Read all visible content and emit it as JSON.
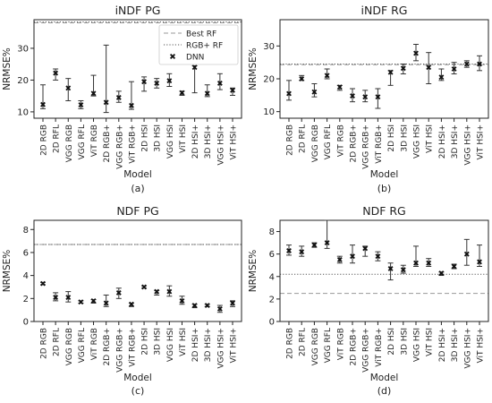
{
  "chart_data": [
    {
      "type": "scatter",
      "panel_label": "(a)",
      "title": "iNDF PG",
      "xlabel": "Model",
      "ylabel": "NRMSE%",
      "ylim": [
        8,
        39
      ],
      "yticks": [
        10,
        20,
        30
      ],
      "categories": [
        "2D RGB",
        "2D RFL",
        "VGG RGB",
        "VGG RFL",
        "ViT RGB",
        "2D RGB+",
        "VGG RGB+",
        "ViT RGB+",
        "2D HSI",
        "3D HSI",
        "VGG HSI",
        "ViT HSI",
        "2D HSI+",
        "3D HSI+",
        "VGG HSI+",
        "ViT HSI+"
      ],
      "series": [
        {
          "name": "DNN",
          "values": [
            12.3,
            22.2,
            17.5,
            12.2,
            15.8,
            13.0,
            14.5,
            12.0,
            19.5,
            19.0,
            19.8,
            16.0,
            24.0,
            15.8,
            19.0,
            16.8
          ],
          "err_low": [
            11.0,
            20.0,
            13.5,
            11.0,
            15.0,
            9.8,
            13.0,
            10.8,
            16.5,
            17.5,
            18.0,
            15.2,
            16.0,
            14.8,
            17.0,
            15.2
          ],
          "err_high": [
            18.5,
            23.5,
            20.5,
            13.5,
            21.5,
            31.0,
            16.5,
            19.5,
            21.0,
            20.5,
            22.0,
            16.5,
            24.5,
            18.5,
            22.0,
            17.5
          ]
        }
      ],
      "ref_lines": [
        {
          "name": "Best RF",
          "style": "dashed",
          "value": 38.0
        },
        {
          "name": "RGB+ RF",
          "style": "dotted",
          "value": 38.3
        }
      ],
      "legend": {
        "position": "top-right",
        "entries": [
          "Best RF",
          "RGB+ RF",
          "DNN"
        ]
      },
      "grid": false
    },
    {
      "type": "scatter",
      "panel_label": "(b)",
      "title": "iNDF RG",
      "xlabel": "Model",
      "ylabel": "NRMSE%",
      "ylim": [
        8,
        38
      ],
      "yticks": [
        10,
        20,
        30
      ],
      "categories": [
        "2D RGB",
        "2D RFL",
        "VGG RGB",
        "VGG RFL",
        "ViT RGB",
        "2D RGB+",
        "VGG RGB+",
        "ViT RGB+",
        "2D HSI",
        "3D HSI",
        "VGG HSI",
        "ViT HSI",
        "2D HSI+",
        "3D HSI+",
        "VGG HSI+",
        "ViT HSI+"
      ],
      "series": [
        {
          "name": "DNN",
          "values": [
            15.5,
            20.0,
            16.0,
            21.0,
            17.5,
            14.8,
            14.5,
            14.5,
            22.0,
            23.2,
            27.8,
            23.5,
            20.5,
            23.0,
            24.5,
            24.5
          ],
          "err_low": [
            13.5,
            19.5,
            14.5,
            20.0,
            16.5,
            13.0,
            13.0,
            11.0,
            18.0,
            21.5,
            25.5,
            18.5,
            19.5,
            21.5,
            23.5,
            22.5
          ],
          "err_high": [
            19.5,
            21.0,
            18.5,
            23.0,
            18.0,
            17.0,
            16.5,
            17.0,
            22.5,
            24.5,
            30.5,
            28.0,
            23.0,
            25.0,
            25.5,
            27.0
          ]
        }
      ],
      "ref_lines": [
        {
          "name": "Best RF",
          "style": "dashed",
          "value": 24.3
        },
        {
          "name": "RGB+ RF",
          "style": "dotted",
          "value": 24.5
        }
      ],
      "grid": false
    },
    {
      "type": "scatter",
      "panel_label": "(c)",
      "title": "NDF PG",
      "xlabel": "Model",
      "ylabel": "NRMSE%",
      "ylim": [
        0,
        8.8
      ],
      "yticks": [
        0,
        2,
        4,
        6,
        8
      ],
      "categories": [
        "2D RGB",
        "2D RFL",
        "VGG RGB",
        "VGG RFL",
        "ViT RGB",
        "2D RGB+",
        "VGG RGB+",
        "ViT RGB+",
        "2D HSI",
        "3D HSI",
        "VGG HSI",
        "ViT HSI",
        "2D HSI+",
        "3D HSI+",
        "VGG HSI+",
        "ViT HSI+"
      ],
      "series": [
        {
          "name": "DNN",
          "values": [
            3.3,
            2.1,
            2.1,
            1.7,
            1.8,
            1.6,
            2.5,
            1.5,
            3.0,
            2.6,
            2.6,
            1.8,
            1.4,
            1.4,
            1.1,
            1.6
          ],
          "err_low": [
            3.2,
            1.8,
            1.7,
            1.6,
            1.6,
            1.3,
            2.0,
            1.3,
            2.9,
            2.3,
            2.2,
            1.5,
            1.2,
            1.3,
            0.8,
            1.3
          ],
          "err_high": [
            3.4,
            2.5,
            2.6,
            1.8,
            1.9,
            2.3,
            2.9,
            1.6,
            3.1,
            2.7,
            3.1,
            2.2,
            1.5,
            1.5,
            1.4,
            1.8
          ]
        }
      ],
      "ref_lines": [
        {
          "name": "Best RF",
          "style": "dashed",
          "value": 6.7
        },
        {
          "name": "RGB+ RF",
          "style": "dotted",
          "value": 6.7
        }
      ],
      "grid": false
    },
    {
      "type": "scatter",
      "panel_label": "(d)",
      "title": "NDF RG",
      "xlabel": "Model",
      "ylabel": "NRMSE%",
      "ylim": [
        0,
        9
      ],
      "yticks": [
        0,
        2,
        4,
        6,
        8
      ],
      "categories": [
        "2D RGB",
        "2D RFL",
        "VGG RGB",
        "VGG RFL",
        "ViT RGB",
        "2D RGB+",
        "VGG RGB+",
        "ViT RGB+",
        "2D HSI",
        "3D HSI",
        "VGG HSI",
        "ViT HSI",
        "2D HSI+",
        "3D HSI+",
        "VGG HSI+",
        "ViT HSI+"
      ],
      "series": [
        {
          "name": "DNN",
          "values": [
            6.3,
            6.2,
            6.8,
            7.0,
            5.5,
            5.8,
            6.5,
            5.8,
            4.7,
            4.6,
            5.2,
            5.2,
            4.3,
            4.9,
            6.0,
            5.3
          ],
          "err_low": [
            5.9,
            5.8,
            6.6,
            6.5,
            5.2,
            5.2,
            5.8,
            5.4,
            3.7,
            4.3,
            4.9,
            4.9,
            4.1,
            4.7,
            5.0,
            4.9
          ],
          "err_high": [
            6.8,
            6.7,
            7.0,
            9.0,
            5.8,
            6.8,
            6.7,
            6.2,
            5.2,
            5.0,
            6.7,
            5.6,
            4.4,
            5.1,
            7.3,
            6.8
          ]
        }
      ],
      "ref_lines": [
        {
          "name": "Best RF",
          "style": "dashed",
          "value": 2.5
        },
        {
          "name": "RGB+ RF",
          "style": "dotted",
          "value": 4.2
        }
      ],
      "grid": false
    }
  ],
  "colors": {
    "axis": "#222222",
    "marker": "#111111",
    "errorbar": "#333333",
    "best_rf": "#9a9a9a",
    "rgbplus_rf": "#555555"
  }
}
